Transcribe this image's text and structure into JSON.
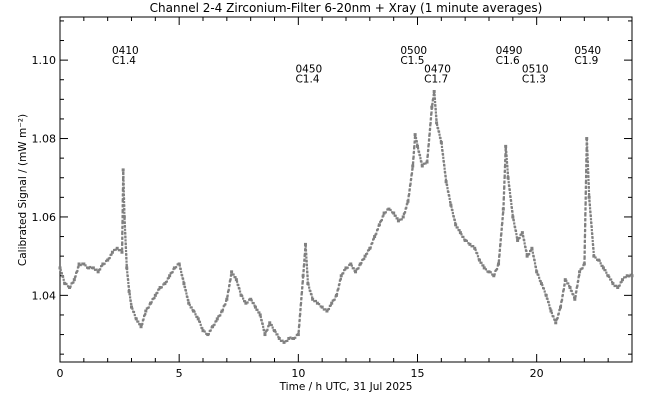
{
  "chart_data": {
    "type": "scatter",
    "title": "Channel 2-4   Zirconium-Filter   6-20nm + Xray   (1 minute averages)",
    "xlabel": "Time / h UTC, 31 Jul 2025",
    "ylabel": "Calibrated Signal / (mW m⁻²)",
    "xlim": [
      0,
      24
    ],
    "ylim": [
      1.023,
      1.111
    ],
    "x_ticks": [
      0,
      5,
      10,
      15,
      20
    ],
    "y_ticks": [
      1.04,
      1.06,
      1.08,
      1.1
    ],
    "y_tick_labels": [
      "1.04",
      "1.06",
      "1.08",
      "1.10"
    ],
    "grid": false,
    "marker_color": "#808080",
    "annotations": [
      {
        "x": 2.6,
        "y": 1.1015,
        "lines": [
          "0410",
          "C1.4"
        ]
      },
      {
        "x": 10.3,
        "y": 1.0968,
        "lines": [
          "0450",
          "C1.4"
        ]
      },
      {
        "x": 14.7,
        "y": 1.1015,
        "lines": [
          "0500",
          "C1.5"
        ]
      },
      {
        "x": 15.7,
        "y": 1.0968,
        "lines": [
          "0470",
          "C1.7"
        ]
      },
      {
        "x": 18.7,
        "y": 1.1015,
        "lines": [
          "0490",
          "C1.6"
        ]
      },
      {
        "x": 19.8,
        "y": 1.0968,
        "lines": [
          "0510",
          "C1.3"
        ]
      },
      {
        "x": 22.0,
        "y": 1.1015,
        "lines": [
          "0540",
          "C1.9"
        ]
      }
    ],
    "series": [
      {
        "x": [
          0.0,
          0.2,
          0.4,
          0.6,
          0.8,
          1.0,
          1.2,
          1.4,
          1.6,
          1.8,
          2.0,
          2.2,
          2.4,
          2.6,
          2.65,
          2.7,
          2.8,
          2.9,
          3.0,
          3.2,
          3.4,
          3.6,
          3.8,
          4.0,
          4.2,
          4.4,
          4.6,
          4.8,
          5.0,
          5.2,
          5.4,
          5.6,
          5.8,
          6.0,
          6.2,
          6.4,
          6.6,
          6.8,
          7.0,
          7.2,
          7.4,
          7.6,
          7.8,
          8.0,
          8.2,
          8.4,
          8.6,
          8.8,
          9.0,
          9.2,
          9.4,
          9.6,
          9.8,
          10.0,
          10.2,
          10.3,
          10.4,
          10.6,
          10.8,
          11.0,
          11.2,
          11.4,
          11.6,
          11.8,
          12.0,
          12.2,
          12.4,
          12.6,
          12.8,
          13.0,
          13.2,
          13.4,
          13.6,
          13.8,
          14.0,
          14.2,
          14.4,
          14.6,
          14.8,
          14.9,
          15.0,
          15.2,
          15.4,
          15.6,
          15.7,
          15.8,
          16.0,
          16.2,
          16.4,
          16.6,
          16.8,
          17.0,
          17.2,
          17.4,
          17.6,
          17.8,
          18.0,
          18.2,
          18.4,
          18.6,
          18.7,
          18.8,
          19.0,
          19.2,
          19.4,
          19.6,
          19.8,
          20.0,
          20.2,
          20.4,
          20.6,
          20.8,
          21.0,
          21.2,
          21.4,
          21.6,
          21.8,
          22.0,
          22.1,
          22.2,
          22.4,
          22.6,
          22.8,
          23.0,
          23.2,
          23.4,
          23.6,
          23.8,
          24.0
        ],
        "y": [
          1.047,
          1.043,
          1.042,
          1.044,
          1.048,
          1.048,
          1.047,
          1.047,
          1.046,
          1.048,
          1.049,
          1.051,
          1.052,
          1.051,
          1.072,
          1.06,
          1.047,
          1.041,
          1.037,
          1.034,
          1.032,
          1.036,
          1.038,
          1.04,
          1.042,
          1.043,
          1.045,
          1.047,
          1.048,
          1.043,
          1.038,
          1.036,
          1.034,
          1.031,
          1.03,
          1.032,
          1.034,
          1.036,
          1.039,
          1.046,
          1.044,
          1.04,
          1.038,
          1.039,
          1.037,
          1.035,
          1.03,
          1.033,
          1.031,
          1.029,
          1.028,
          1.029,
          1.029,
          1.03,
          1.045,
          1.053,
          1.043,
          1.039,
          1.038,
          1.037,
          1.036,
          1.038,
          1.04,
          1.045,
          1.047,
          1.048,
          1.046,
          1.048,
          1.05,
          1.052,
          1.055,
          1.058,
          1.061,
          1.062,
          1.061,
          1.059,
          1.06,
          1.064,
          1.073,
          1.081,
          1.078,
          1.073,
          1.074,
          1.088,
          1.092,
          1.084,
          1.079,
          1.069,
          1.063,
          1.058,
          1.056,
          1.054,
          1.053,
          1.052,
          1.049,
          1.047,
          1.046,
          1.045,
          1.048,
          1.062,
          1.078,
          1.07,
          1.06,
          1.054,
          1.056,
          1.05,
          1.052,
          1.046,
          1.043,
          1.04,
          1.036,
          1.033,
          1.037,
          1.044,
          1.042,
          1.039,
          1.046,
          1.048,
          1.08,
          1.065,
          1.05,
          1.049,
          1.047,
          1.045,
          1.043,
          1.042,
          1.044,
          1.045,
          1.045
        ]
      }
    ]
  }
}
